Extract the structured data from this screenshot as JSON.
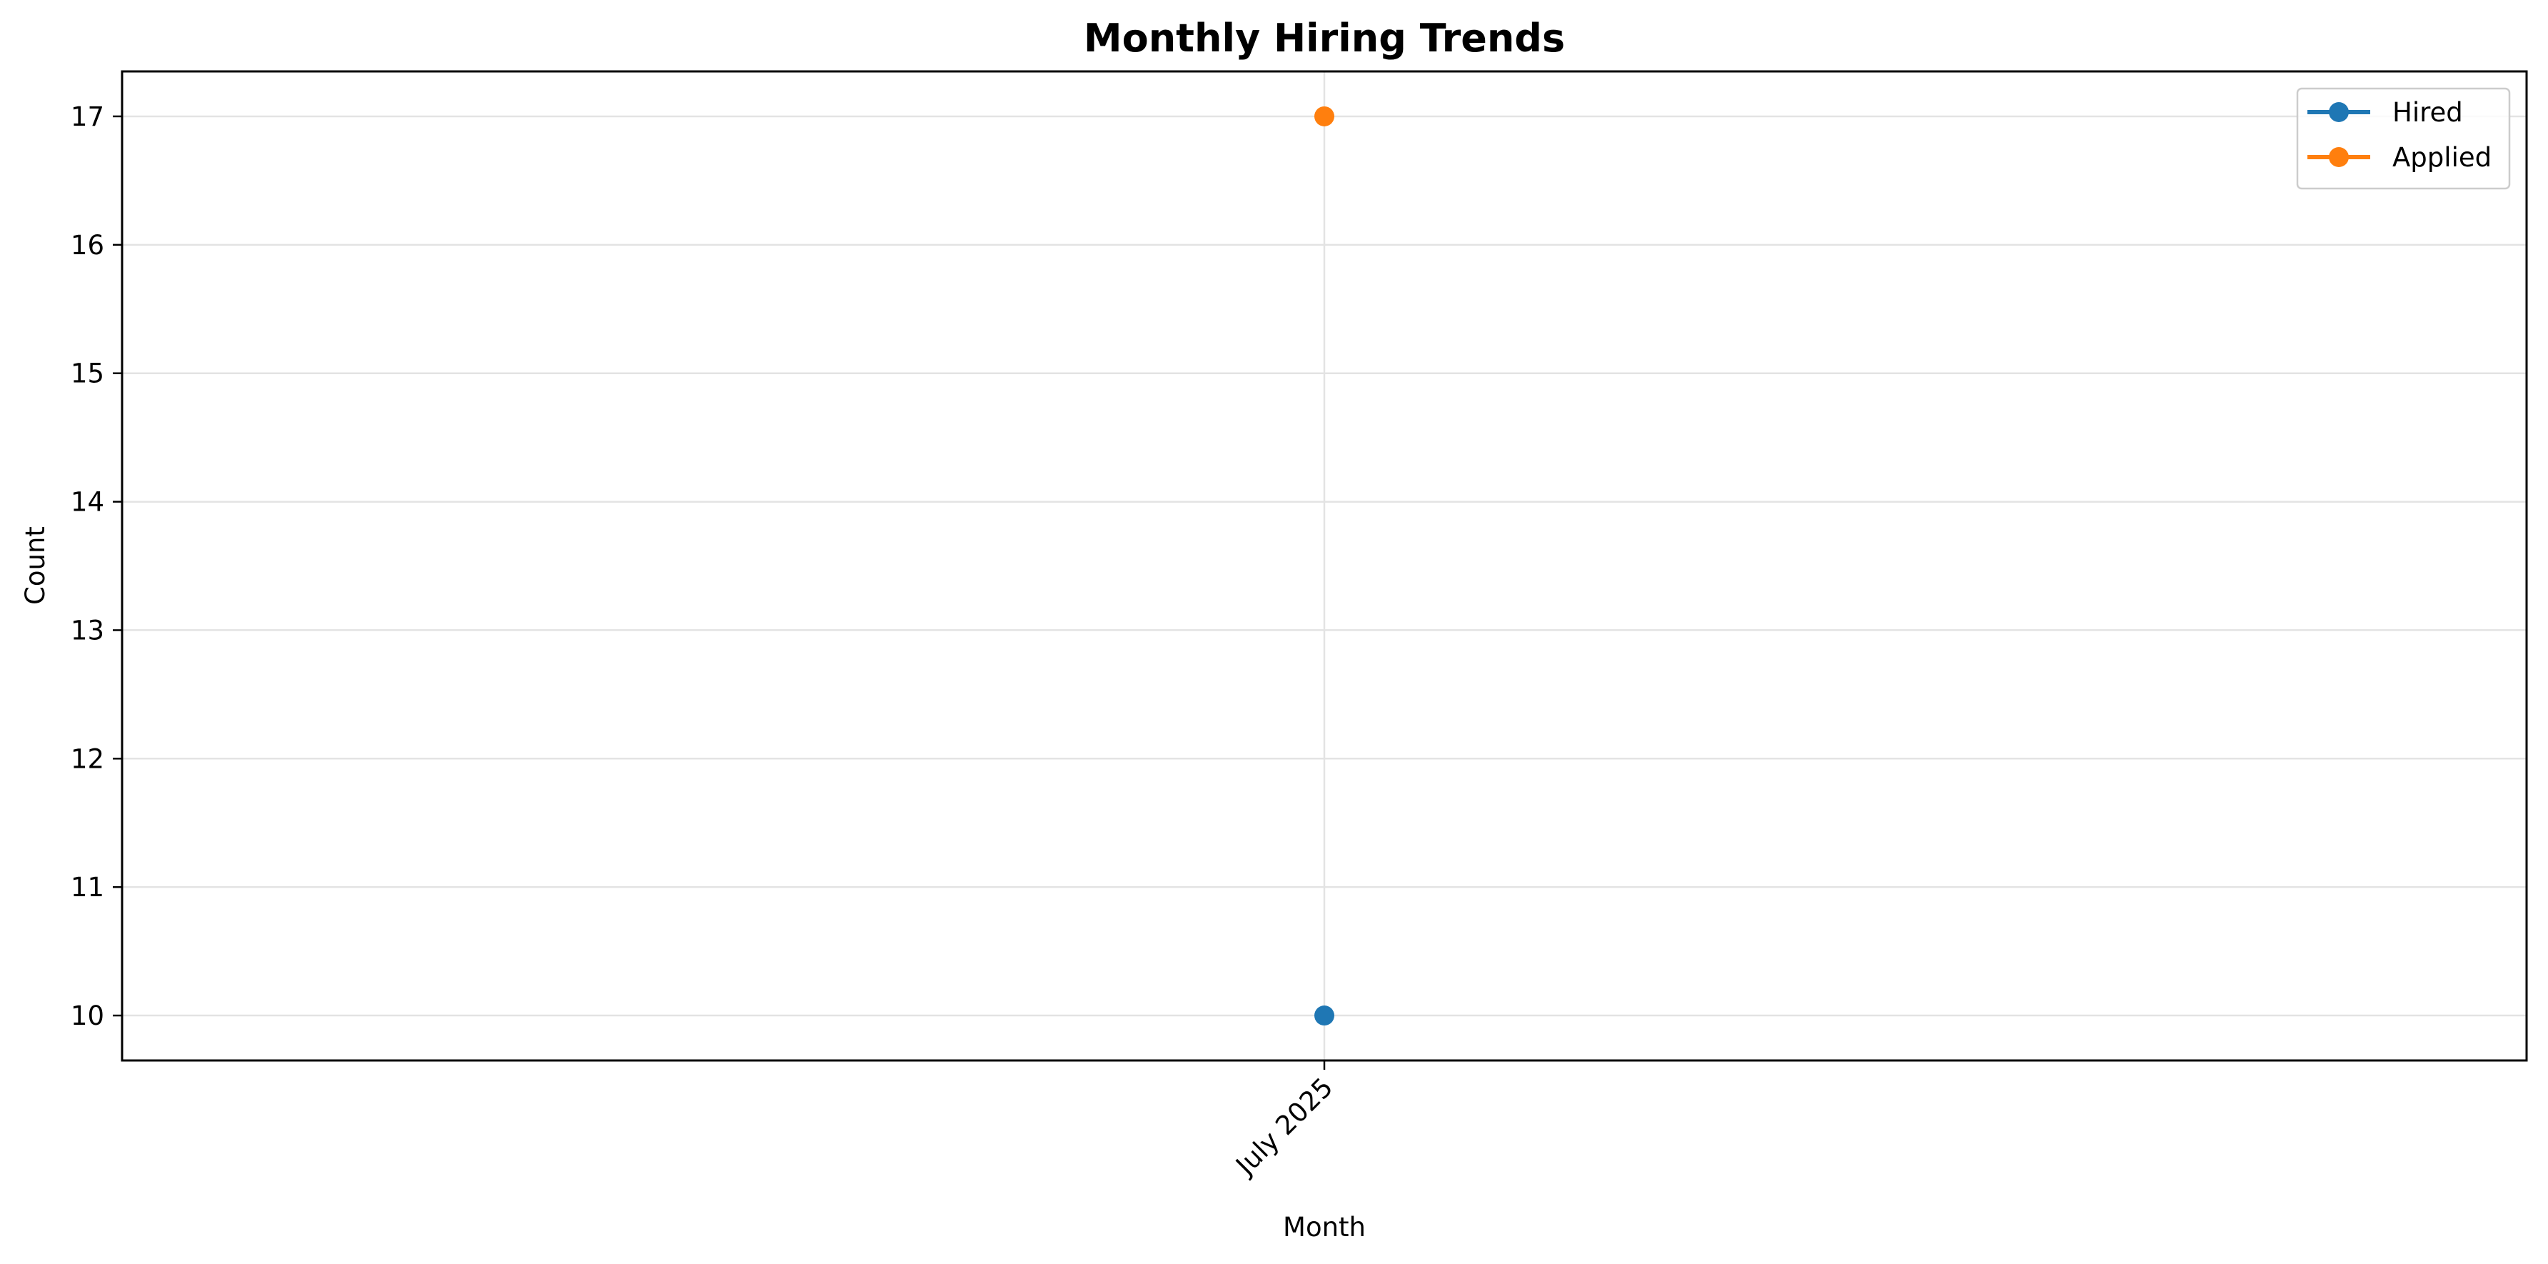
{
  "chart_data": {
    "type": "line",
    "title": "Monthly Hiring Trends",
    "xlabel": "Month",
    "ylabel": "Count",
    "categories": [
      "July 2025"
    ],
    "series": [
      {
        "name": "Hired",
        "values": [
          10
        ],
        "color": "#1f77b4"
      },
      {
        "name": "Applied",
        "values": [
          17
        ],
        "color": "#ff7f0e"
      }
    ],
    "ylim": [
      9.65,
      17.35
    ],
    "yticks": [
      10,
      11,
      12,
      13,
      14,
      15,
      16,
      17
    ],
    "grid": true,
    "legend_position": "top-right"
  }
}
